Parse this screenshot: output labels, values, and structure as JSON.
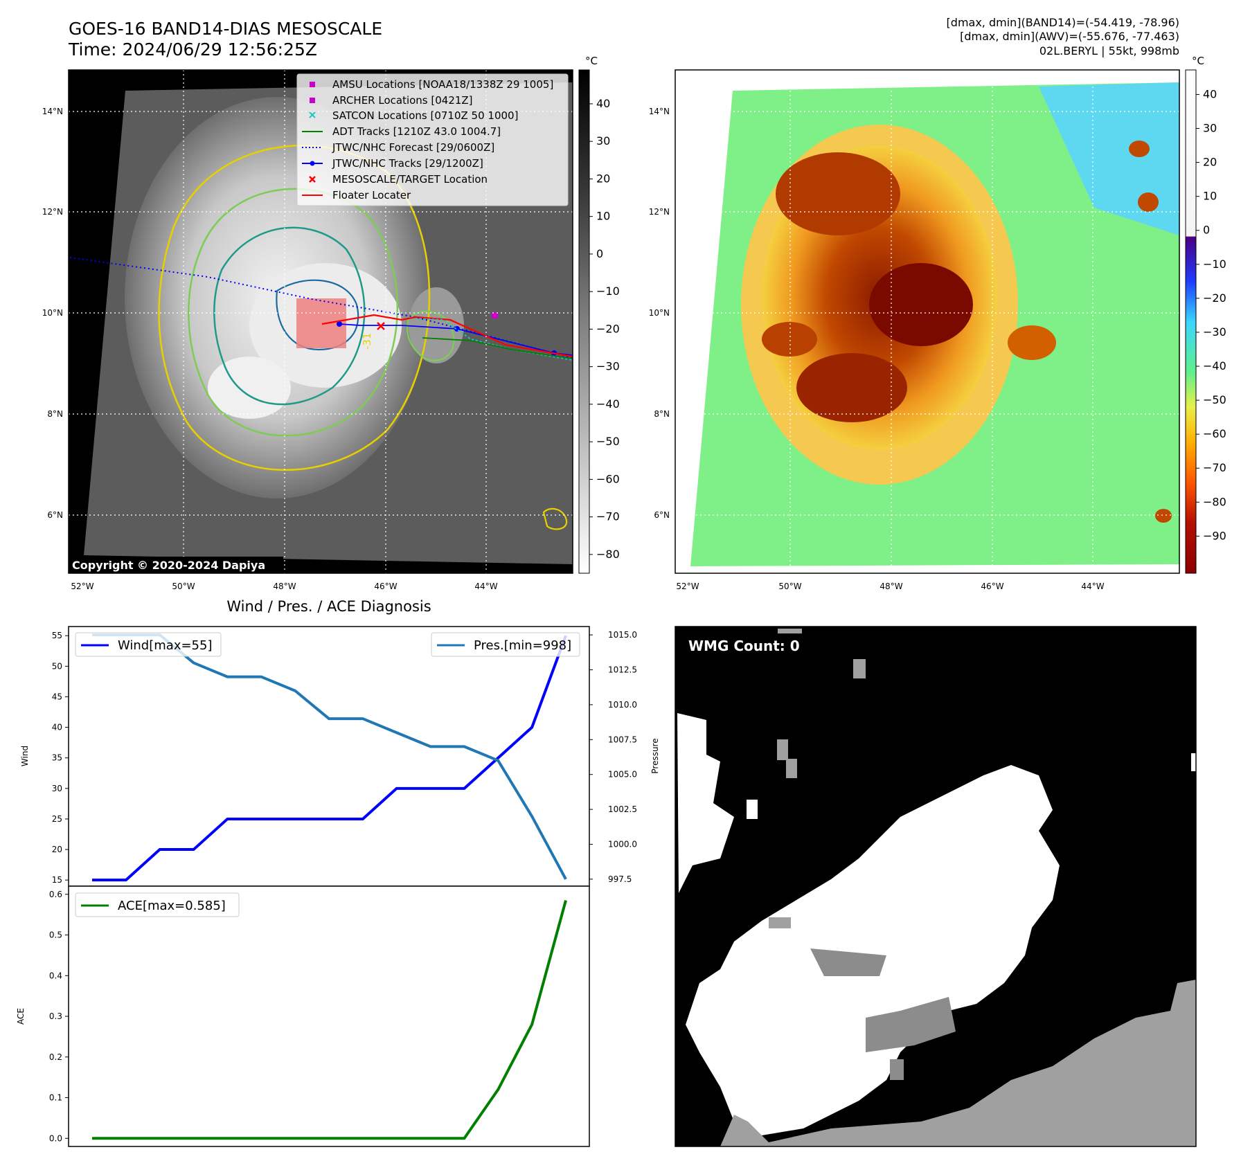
{
  "header": {
    "title": "GOES-16 BAND14-DIAS MESOSCALE",
    "time": "Time: 2024/06/29 12:56:25Z",
    "stats_band14": "[dmax, dmin](BAND14)=(-54.419, -78.96)",
    "stats_awv": "[dmax, dmin](AWV)=(-55.676, -77.463)",
    "storm": "02L.BERYL | 55kt, 998mb"
  },
  "map": {
    "lat_ticks": [
      "14°N",
      "12°N",
      "10°N",
      "8°N",
      "6°N"
    ],
    "lon_ticks": [
      "52°W",
      "50°W",
      "48°W",
      "46°W",
      "44°W"
    ],
    "copyright": "Copyright © 2020-2024 Dapiya",
    "contour_label": "-31",
    "legend": [
      {
        "label": "AMSU Locations [NOAA18/1338Z 29 1005]",
        "color": "#cc00cc",
        "marker": "square"
      },
      {
        "label": "ARCHER Locations [0421Z]",
        "color": "#cc00cc",
        "marker": "square"
      },
      {
        "label": "SATCON Locations [0710Z 50 1000]",
        "color": "#19c5c5",
        "marker": "x"
      },
      {
        "label": "ADT Tracks [1210Z 43.0 1004.7]",
        "color": "#008000",
        "marker": "line"
      },
      {
        "label": "JTWC/NHC Forecast [29/0600Z]",
        "color": "#0000ff",
        "marker": "dotted"
      },
      {
        "label": "JTWC/NHC Tracks [29/1200Z]",
        "color": "#0000ff",
        "marker": "line-dot"
      },
      {
        "label": "MESOSCALE/TARGET Location",
        "color": "#ff0000",
        "marker": "x"
      },
      {
        "label": "Floater Locater",
        "color": "#ff0000",
        "marker": "line"
      }
    ]
  },
  "colorbar_gray": {
    "unit": "°C",
    "ticks": [
      "40",
      "30",
      "20",
      "10",
      "0",
      "−10",
      "−20",
      "−30",
      "−40",
      "−50",
      "−60",
      "−70",
      "−80"
    ]
  },
  "colorbar_color": {
    "unit": "°C",
    "ticks": [
      "40",
      "30",
      "20",
      "10",
      "0",
      "−10",
      "−20",
      "−30",
      "−40",
      "−50",
      "−60",
      "−70",
      "−80",
      "−90"
    ]
  },
  "diag": {
    "title": "Wind / Pres. / ACE Diagnosis",
    "wind_ylabel": "Wind",
    "pres_ylabel": "Pressure",
    "ace_ylabel": "ACE",
    "wind_ticks": [
      "55",
      "50",
      "45",
      "40",
      "35",
      "30",
      "25",
      "20",
      "15"
    ],
    "pres_ticks": [
      "1015.0",
      "1012.5",
      "1010.0",
      "1007.5",
      "1005.0",
      "1002.5",
      "1000.0",
      "997.5"
    ],
    "ace_ticks": [
      "0.6",
      "0.5",
      "0.4",
      "0.3",
      "0.2",
      "0.1",
      "0.0"
    ],
    "wind_legend": "Wind[max=55]",
    "pres_legend": "Pres.[min=998]",
    "ace_legend": "ACE[max=0.585]"
  },
  "wmg": {
    "label": "WMG Count: 0"
  },
  "chart_data": [
    {
      "type": "line",
      "title": "Wind / Pres. / ACE Diagnosis",
      "ylabel": "Wind",
      "ylim": [
        14,
        56.5
      ],
      "series": [
        {
          "name": "Wind[max=55]",
          "color": "#0000ff",
          "values": [
            15,
            15,
            20,
            20,
            25,
            25,
            25,
            25,
            25,
            30,
            30,
            30,
            35,
            40,
            55
          ]
        }
      ]
    },
    {
      "type": "line",
      "ylabel": "Pressure",
      "ylim": [
        997,
        1015.6
      ],
      "series": [
        {
          "name": "Pres.[min=998]",
          "color": "#1f77b4",
          "values": [
            1015,
            1015,
            1015,
            1013,
            1012,
            1012,
            1011,
            1009,
            1009,
            1008,
            1007,
            1007,
            1006,
            1002,
            997.5
          ]
        }
      ]
    },
    {
      "type": "line",
      "ylabel": "ACE",
      "ylim": [
        -0.02,
        0.62
      ],
      "series": [
        {
          "name": "ACE[max=0.585]",
          "color": "#008000",
          "values": [
            0,
            0,
            0,
            0,
            0,
            0,
            0,
            0,
            0,
            0,
            0,
            0,
            0.12,
            0.28,
            0.585
          ]
        }
      ]
    }
  ]
}
